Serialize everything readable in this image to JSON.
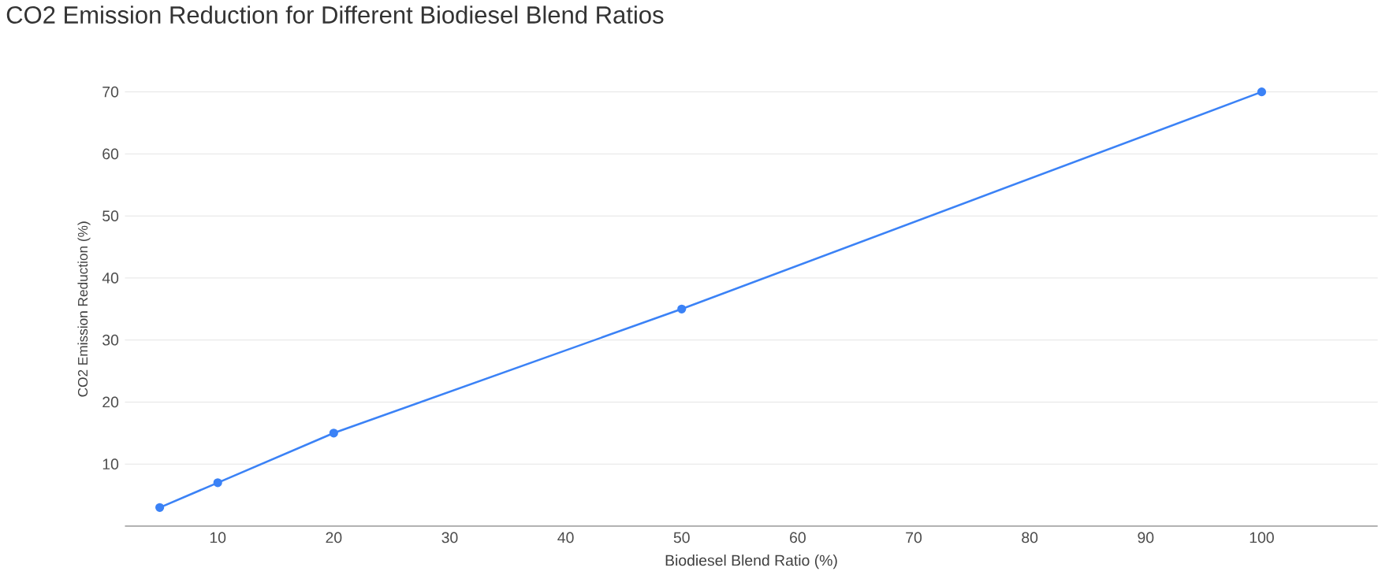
{
  "chart_data": {
    "type": "line",
    "title": "CO2 Emission Reduction for Different Biodiesel Blend Ratios",
    "xlabel": "Biodiesel Blend Ratio (%)",
    "ylabel": "CO2 Emission Reduction (%)",
    "x": [
      5,
      10,
      20,
      50,
      100
    ],
    "series": [
      {
        "color": "#3b82f6",
        "values": [
          3,
          7,
          15,
          35,
          70
        ]
      }
    ],
    "xlim": [
      2,
      110
    ],
    "ylim": [
      0,
      70
    ],
    "xticks": [
      10,
      20,
      30,
      40,
      50,
      60,
      70,
      80,
      90,
      100
    ],
    "yticks": [
      10,
      20,
      30,
      40,
      50,
      60,
      70
    ],
    "grid": "y",
    "marker": "circle",
    "line_style": "solid",
    "legend": false
  }
}
